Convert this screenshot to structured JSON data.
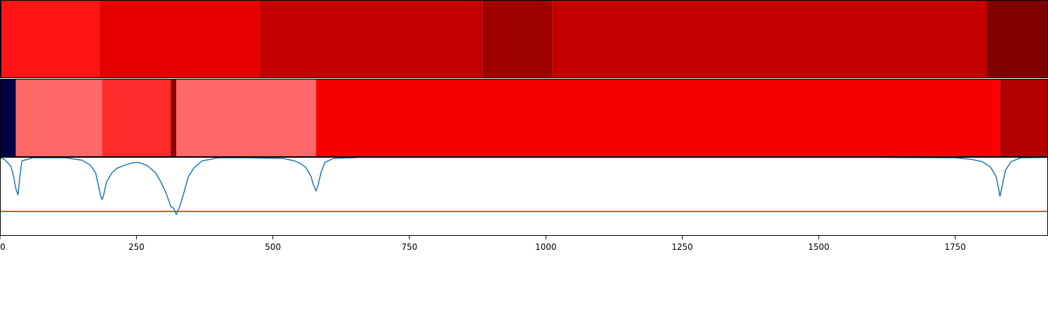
{
  "chart_data": [
    {
      "type": "heatmap",
      "xlim": [
        0,
        1920
      ],
      "segments": [
        {
          "start": 0,
          "end": 3,
          "color": "#000044"
        },
        {
          "start": 3,
          "end": 182,
          "color": "#ff1414"
        },
        {
          "start": 182,
          "end": 475,
          "color": "#e60000"
        },
        {
          "start": 475,
          "end": 884,
          "color": "#c40000"
        },
        {
          "start": 884,
          "end": 1012,
          "color": "#9e0000"
        },
        {
          "start": 1012,
          "end": 1808,
          "color": "#c40000"
        },
        {
          "start": 1808,
          "end": 1920,
          "color": "#800000"
        }
      ]
    },
    {
      "type": "heatmap",
      "xlim": [
        0,
        1920
      ],
      "segments": [
        {
          "start": 0,
          "end": 29,
          "color": "#000044"
        },
        {
          "start": 29,
          "end": 187,
          "color": "#ff6868"
        },
        {
          "start": 187,
          "end": 313,
          "color": "#ff2a2a"
        },
        {
          "start": 313,
          "end": 323,
          "color": "#8a0000"
        },
        {
          "start": 323,
          "end": 579,
          "color": "#ff6868"
        },
        {
          "start": 579,
          "end": 1832,
          "color": "#f70000"
        },
        {
          "start": 1832,
          "end": 1920,
          "color": "#b40000"
        }
      ]
    },
    {
      "type": "line",
      "xlim": [
        0,
        1920
      ],
      "ylim": [
        0,
        1
      ],
      "xticks": [
        0,
        250,
        500,
        750,
        1000,
        1250,
        1500,
        1750
      ],
      "xtick_labels": [
        "0",
        "250",
        "500",
        "750",
        "1000",
        "1250",
        "1500",
        "1750"
      ],
      "threshold": 0.31,
      "threshold_color": "#ff0000",
      "line_color": "#1f77b4",
      "series": [
        {
          "x": [
            0,
            8,
            14,
            20,
            25,
            29,
            33,
            36,
            40,
            60,
            120,
            150,
            165,
            175,
            180,
            184,
            187,
            190,
            195,
            205,
            215,
            230,
            245,
            255,
            270,
            285,
            295,
            305,
            313,
            318,
            323,
            328,
            335,
            345,
            355,
            370,
            400,
            450,
            520,
            540,
            550,
            560,
            570,
            574,
            579,
            583,
            588,
            595,
            610,
            660,
            800,
            1000,
            1300,
            1600,
            1750,
            1780,
            1800,
            1815,
            1825,
            1829,
            1832,
            1836,
            1842,
            1852,
            1870,
            1920
          ],
          "y": [
            0.99,
            0.97,
            0.93,
            0.88,
            0.75,
            0.6,
            0.52,
            0.73,
            0.95,
            0.99,
            0.99,
            0.96,
            0.9,
            0.8,
            0.65,
            0.52,
            0.46,
            0.52,
            0.68,
            0.8,
            0.86,
            0.9,
            0.93,
            0.93,
            0.89,
            0.8,
            0.68,
            0.53,
            0.37,
            0.35,
            0.27,
            0.35,
            0.5,
            0.75,
            0.86,
            0.95,
            0.99,
            0.99,
            0.98,
            0.95,
            0.92,
            0.87,
            0.75,
            0.65,
            0.57,
            0.65,
            0.8,
            0.93,
            0.98,
            0.995,
            0.995,
            0.995,
            0.995,
            0.995,
            0.99,
            0.97,
            0.94,
            0.87,
            0.75,
            0.62,
            0.5,
            0.63,
            0.83,
            0.94,
            0.99,
            0.995
          ]
        }
      ]
    }
  ]
}
